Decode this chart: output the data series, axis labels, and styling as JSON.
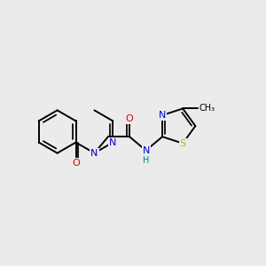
{
  "background_color": "#ebebeb",
  "atom_colors": {
    "C": "#000000",
    "N": "#0000cc",
    "O": "#dd0000",
    "S": "#ccaa00",
    "H": "#008080"
  },
  "bond_color": "#000000",
  "bond_width": 1.4,
  "figsize": [
    3.0,
    3.0
  ],
  "dpi": 100,
  "xlim": [
    0,
    10
  ],
  "ylim": [
    1,
    8
  ]
}
